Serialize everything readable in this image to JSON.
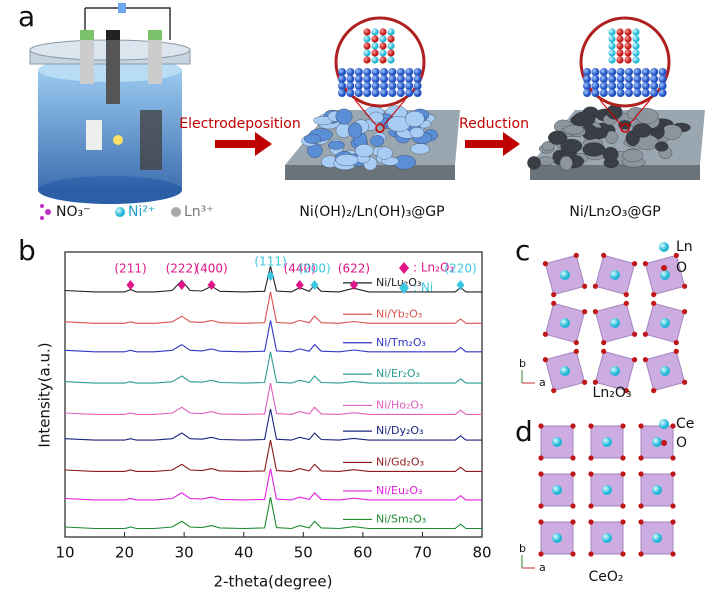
{
  "panel_a": {
    "letter": "a",
    "step1": "Electrodeposition",
    "step2": "Reduction",
    "ions": [
      "NO₃⁻",
      "Ni²⁺",
      "Ln³⁺"
    ],
    "product1": "Ni(OH)₂/Ln(OH)₃@GP",
    "product2": "Ni/Ln₂O₃@GP"
  },
  "chart_data": {
    "type": "line",
    "letter": "b",
    "x_label": "2-theta(degree)",
    "y_label": "Intensity(a.u.)",
    "xlim": [
      10,
      80
    ],
    "xticks": [
      10,
      20,
      30,
      40,
      50,
      60,
      70,
      80
    ],
    "ylim": [
      0,
      100
    ],
    "x": [
      10,
      15,
      20,
      21,
      22,
      25,
      28,
      29.6,
      31,
      33,
      34.6,
      36,
      40,
      43.5,
      44.5,
      45.5,
      48,
      49.4,
      51,
      51.9,
      53,
      56,
      58.5,
      61,
      65,
      70,
      75.5,
      76.4,
      77.3,
      80
    ],
    "series": [
      {
        "name": "Ni/Lu₂O₃",
        "color": "#222222",
        "values": [
          86.5,
          86,
          86,
          86.8,
          86,
          86,
          86.5,
          90,
          86.5,
          86.3,
          88,
          86.2,
          86,
          86.2,
          95,
          86.3,
          86,
          87.5,
          86.2,
          88.5,
          86.2,
          86,
          87.3,
          86,
          86,
          86,
          86,
          87.5,
          86,
          86
        ]
      },
      {
        "name": "Ni/Yb₂O₃",
        "color": "#d9534f",
        "values": [
          75.5,
          75,
          75,
          75.5,
          75,
          75,
          75.5,
          77.5,
          75.5,
          75.3,
          76,
          75.2,
          75,
          75.2,
          86,
          75.3,
          75,
          76,
          75.2,
          77.5,
          75.2,
          75,
          75.6,
          75,
          75,
          75,
          75,
          76.5,
          75,
          75
        ]
      },
      {
        "name": "Ni/Tm₂O₃",
        "color": "#3535c8",
        "values": [
          65.5,
          65,
          65,
          65.5,
          65,
          65,
          65.5,
          67.5,
          65.5,
          65.3,
          66,
          65.2,
          65,
          65.2,
          76,
          65.3,
          65,
          66,
          65.2,
          67.5,
          65.2,
          65,
          65.6,
          65,
          65,
          65,
          65,
          66.5,
          65,
          65
        ]
      },
      {
        "name": "Ni/Er₂O₃",
        "color": "#2a9d8f",
        "values": [
          54.5,
          54,
          54,
          54.5,
          54,
          54,
          54.5,
          56.5,
          54.5,
          54.3,
          55,
          54.2,
          54,
          54.2,
          65,
          54.3,
          54,
          55,
          54.2,
          56.5,
          54.2,
          54,
          54.6,
          54,
          54,
          54,
          54,
          55.5,
          54,
          54
        ]
      },
      {
        "name": "Ni/Ho₂O₃",
        "color": "#e060c0",
        "values": [
          43.5,
          43,
          43,
          43.5,
          43,
          43,
          43.5,
          45.5,
          43.5,
          43.3,
          44,
          43.2,
          43,
          43.2,
          54,
          43.3,
          43,
          44,
          43.2,
          45.5,
          43.2,
          43,
          43.6,
          43,
          43,
          43,
          43,
          44.5,
          43,
          43
        ]
      },
      {
        "name": "Ni/Dy₂O₃",
        "color": "#1a237e",
        "values": [
          34.5,
          34,
          34,
          34.5,
          34,
          34,
          34.5,
          36.5,
          34.5,
          34.3,
          35,
          34.2,
          34,
          34.2,
          45,
          34.3,
          34,
          35,
          34.2,
          36.5,
          34.2,
          34,
          34.6,
          34,
          34,
          34,
          34,
          35.5,
          34,
          34
        ]
      },
      {
        "name": "Ni/Gd₂O₃",
        "color": "#8b1a1a",
        "values": [
          23.5,
          23,
          23,
          23.5,
          23,
          23,
          23.5,
          25.5,
          23.5,
          23.3,
          24,
          23.2,
          23,
          23.2,
          34,
          23.3,
          23,
          24,
          23.2,
          25.5,
          23.2,
          23,
          23.6,
          23,
          23,
          23,
          23,
          24.5,
          23,
          23
        ]
      },
      {
        "name": "Ni/Eu₂O₃",
        "color": "#e020e0",
        "values": [
          13.5,
          13,
          13,
          13.5,
          13,
          13,
          13.5,
          15.5,
          13.5,
          13.3,
          14,
          13.2,
          13,
          13.2,
          24,
          13.3,
          13,
          14,
          13.2,
          15.5,
          13.2,
          13,
          13.6,
          13,
          13,
          13,
          13,
          14.5,
          13,
          13
        ]
      },
      {
        "name": "Ni/Sm₂O₃",
        "color": "#1e8a2e",
        "values": [
          3.5,
          3,
          3,
          3.5,
          3,
          3,
          3.5,
          5.5,
          3.5,
          3.3,
          4,
          3.2,
          3,
          3.2,
          14,
          3.3,
          3,
          4,
          3.2,
          5.5,
          3.2,
          3,
          3.6,
          3,
          3,
          3,
          3,
          4.5,
          3,
          3
        ]
      }
    ],
    "phases": [
      {
        "legend_label": ": Ln₂O₃",
        "color": "#e0158a",
        "peaks": [
          {
            "x": 21,
            "label": "(211)"
          },
          {
            "x": 29.6,
            "label": "(222)"
          },
          {
            "x": 34.6,
            "label": "(400)"
          },
          {
            "x": 49.4,
            "label": "(440)"
          },
          {
            "x": 58.5,
            "label": "(622)"
          }
        ]
      },
      {
        "legend_label": ": Ni",
        "color": "#3cc8e0",
        "peaks": [
          {
            "x": 44.5,
            "label": "(111)"
          },
          {
            "x": 51.9,
            "label": "(200)"
          },
          {
            "x": 76.4,
            "label": "(220)"
          }
        ]
      }
    ]
  },
  "panel_c": {
    "letter": "c",
    "legend": [
      "Ln",
      "O"
    ],
    "axes": [
      "b",
      "a"
    ],
    "caption": "Ln₂O₃"
  },
  "panel_d": {
    "letter": "d",
    "legend": [
      "Ce",
      "O"
    ],
    "axes": [
      "b",
      "a"
    ],
    "caption": "CeO₂"
  }
}
